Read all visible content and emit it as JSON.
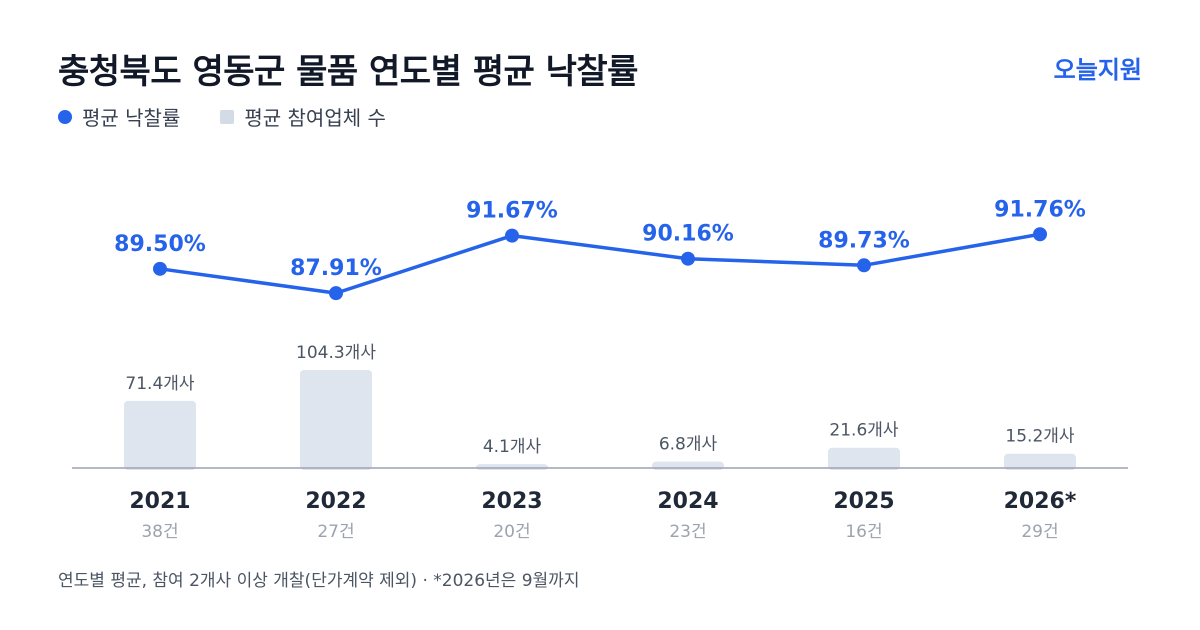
{
  "title": "충청북도 영동군 물품 연도별 평균 낙찰률",
  "brand": "오늘지원",
  "legend": {
    "rate": "평균 낙찰률",
    "bidders": "평균 참여업체 수"
  },
  "footnote": "연도별 평균, 참여 2개사 이상 개찰(단가계약 제외) · *2026년은 9월까지",
  "colors": {
    "line": "#2563eb",
    "bar": "#dfe5ee",
    "axis": "#9aa3b0",
    "year": "#1f2937",
    "count": "#9ca3af",
    "bar_label": "#4b5563"
  },
  "chart_data": {
    "type": "bar",
    "title": "충청북도 영동군 물품 연도별 평균 낙찰률",
    "categories": [
      "2021",
      "2022",
      "2023",
      "2024",
      "2025",
      "2026*"
    ],
    "counts": [
      "38건",
      "27건",
      "20건",
      "23건",
      "16건",
      "29건"
    ],
    "series": [
      {
        "name": "평균 낙찰률",
        "type": "line",
        "values": [
          89.5,
          87.91,
          91.67,
          90.16,
          89.73,
          91.76
        ],
        "labels": [
          "89.50%",
          "87.91%",
          "91.67%",
          "90.16%",
          "89.73%",
          "91.76%"
        ],
        "ylim": [
          85.5,
          94.0
        ]
      },
      {
        "name": "평균 참여업체 수",
        "type": "bar",
        "values": [
          71.4,
          104.3,
          4.1,
          6.8,
          21.6,
          15.2
        ],
        "labels": [
          "71.4개사",
          "104.3개사",
          "4.1개사",
          "6.8개사",
          "21.6개사",
          "15.2개사"
        ],
        "ylim": [
          0,
          104.3
        ]
      }
    ],
    "grid": false,
    "legend_position": "top-left"
  }
}
